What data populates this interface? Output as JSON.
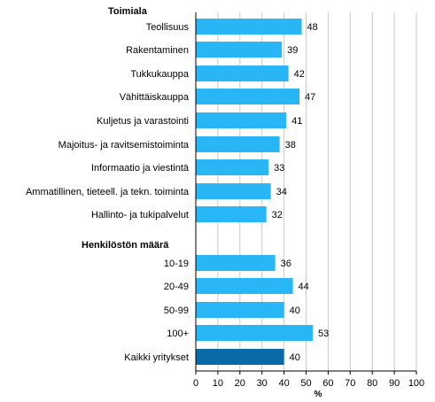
{
  "chart_data": {
    "type": "bar",
    "orientation": "horizontal",
    "xlabel": "%",
    "xlim": [
      0,
      100
    ],
    "xticks": [
      0,
      10,
      20,
      30,
      40,
      50,
      60,
      70,
      80,
      90,
      100
    ],
    "grid": "vertical",
    "groups": [
      {
        "heading": "Toimiala",
        "categories": [
          "Teollisuus",
          "Rakentaminen",
          "Tukkukauppa",
          "Vähittäiskauppa",
          "Kuljetus ja varastointi",
          "Majoitus- ja ravitsemistoiminta",
          "Informaatio ja viestintä",
          "Ammatillinen, tieteell. ja tekn. toiminta",
          "Hallinto- ja tukipalvelut"
        ],
        "values": [
          48,
          39,
          42,
          47,
          41,
          38,
          33,
          34,
          32
        ]
      },
      {
        "heading": "Henkilöstön  määrä",
        "categories": [
          "10-19",
          "20-49",
          "50-99",
          "100+"
        ],
        "values": [
          36,
          44,
          40,
          53
        ]
      },
      {
        "heading": "",
        "categories": [
          "Kaikki yritykset"
        ],
        "values": [
          40
        ],
        "highlight": true
      }
    ],
    "colors": {
      "bar": "#29b6f6",
      "highlight_bar": "#0a6aa8",
      "grid": "#c8c8c8",
      "axis": "#000000"
    }
  }
}
